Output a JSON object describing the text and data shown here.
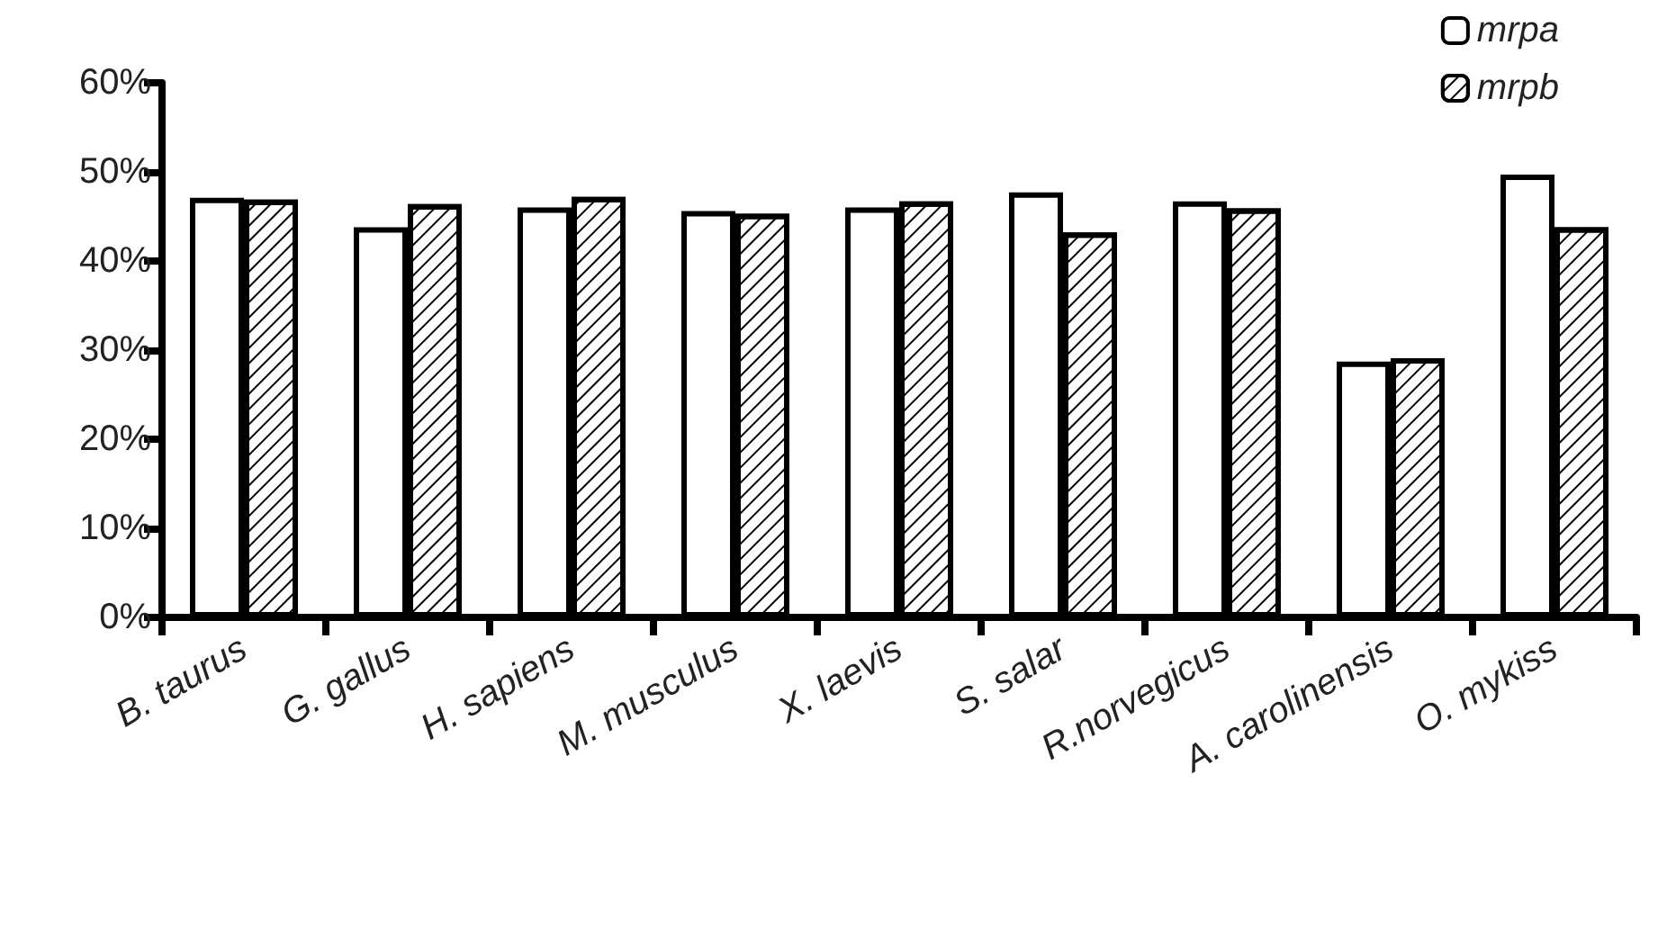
{
  "chart_data": {
    "type": "bar",
    "categories": [
      "B. taurus",
      "G. gallus",
      "H. sapiens",
      "M. musculus",
      "X. laevis",
      "S. salar",
      "R.norvegicus",
      "A. carolinensis",
      "O. mykiss"
    ],
    "series": [
      {
        "name": "mrpa",
        "color": "#ffffff",
        "values": [
          47.1,
          43.8,
          46.0,
          45.6,
          46.0,
          47.7,
          46.7,
          28.7,
          49.7
        ]
      },
      {
        "name": "mrpb",
        "color": "#ffffff",
        "values": [
          46.9,
          46.4,
          47.2,
          45.3,
          46.7,
          43.2,
          45.9,
          29.1,
          43.8
        ]
      }
    ],
    "ylim": [
      0,
      60
    ],
    "yticks": [
      {
        "value": 0,
        "label": "0%"
      },
      {
        "value": 10,
        "label": "10%"
      },
      {
        "value": 20,
        "label": "20%"
      },
      {
        "value": 30,
        "label": "30%"
      },
      {
        "value": 40,
        "label": "40%"
      },
      {
        "value": 50,
        "label": "50%"
      },
      {
        "value": 60,
        "label": "60%"
      }
    ],
    "grid": false,
    "legend": "top right"
  }
}
